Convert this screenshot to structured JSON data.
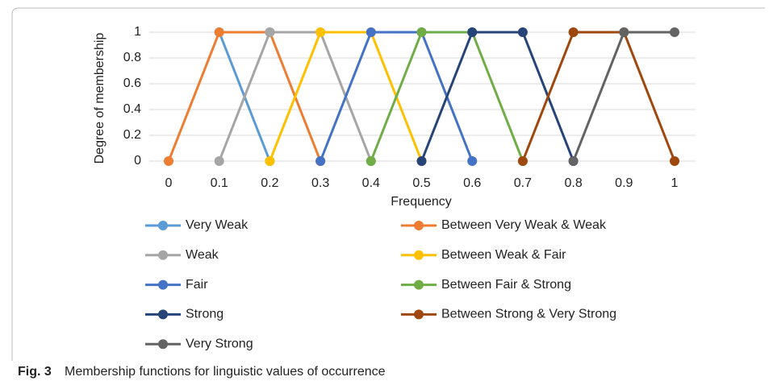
{
  "chart_data": {
    "type": "line",
    "x": [
      0,
      0.1,
      0.2,
      0.3,
      0.4,
      0.5,
      0.6,
      0.7,
      0.8,
      0.9,
      1
    ],
    "xticks": [
      0,
      0.1,
      0.2,
      0.3,
      0.4,
      0.5,
      0.6,
      0.7,
      0.8,
      0.9,
      1
    ],
    "xlim": [
      0,
      1
    ],
    "ylim": [
      0,
      1
    ],
    "yticks": [
      0,
      0.2,
      0.4,
      0.6,
      0.8,
      1
    ],
    "grid": true,
    "x_label": "Frequency",
    "y_label": "Degree of membership",
    "series": [
      {
        "name": "Very Weak",
        "color": "#5B9BD5",
        "values": [
          null,
          1,
          0,
          null,
          null,
          null,
          null,
          null,
          null,
          null,
          null
        ]
      },
      {
        "name": "Between Very Weak & Weak",
        "color": "#ED7D31",
        "values": [
          0,
          1,
          1,
          0,
          null,
          null,
          null,
          null,
          null,
          null,
          null
        ]
      },
      {
        "name": "Weak",
        "color": "#A5A5A5",
        "values": [
          null,
          0,
          1,
          1,
          0,
          null,
          null,
          null,
          null,
          null,
          null
        ]
      },
      {
        "name": "Between Weak & Fair",
        "color": "#FFC000",
        "values": [
          null,
          null,
          0,
          1,
          1,
          0,
          null,
          null,
          null,
          null,
          null
        ]
      },
      {
        "name": "Fair",
        "color": "#4472C4",
        "values": [
          null,
          null,
          null,
          0,
          1,
          1,
          0,
          null,
          null,
          null,
          null
        ]
      },
      {
        "name": "Between Fair & Strong",
        "color": "#70AD47",
        "values": [
          null,
          null,
          null,
          null,
          0,
          1,
          1,
          0,
          null,
          null,
          null
        ]
      },
      {
        "name": "Strong",
        "color": "#264478",
        "values": [
          null,
          null,
          null,
          null,
          null,
          0,
          1,
          1,
          0,
          null,
          null
        ]
      },
      {
        "name": "Between Strong & Very Strong",
        "color": "#9E480E",
        "values": [
          null,
          null,
          null,
          null,
          null,
          null,
          null,
          0,
          1,
          1,
          0
        ]
      },
      {
        "name": "Very Strong",
        "color": "#636363",
        "values": [
          null,
          null,
          null,
          null,
          null,
          null,
          null,
          null,
          0,
          1,
          1
        ]
      }
    ]
  },
  "caption_label": "Fig. 3",
  "caption": "Membership functions for linguistic values of occurrence"
}
